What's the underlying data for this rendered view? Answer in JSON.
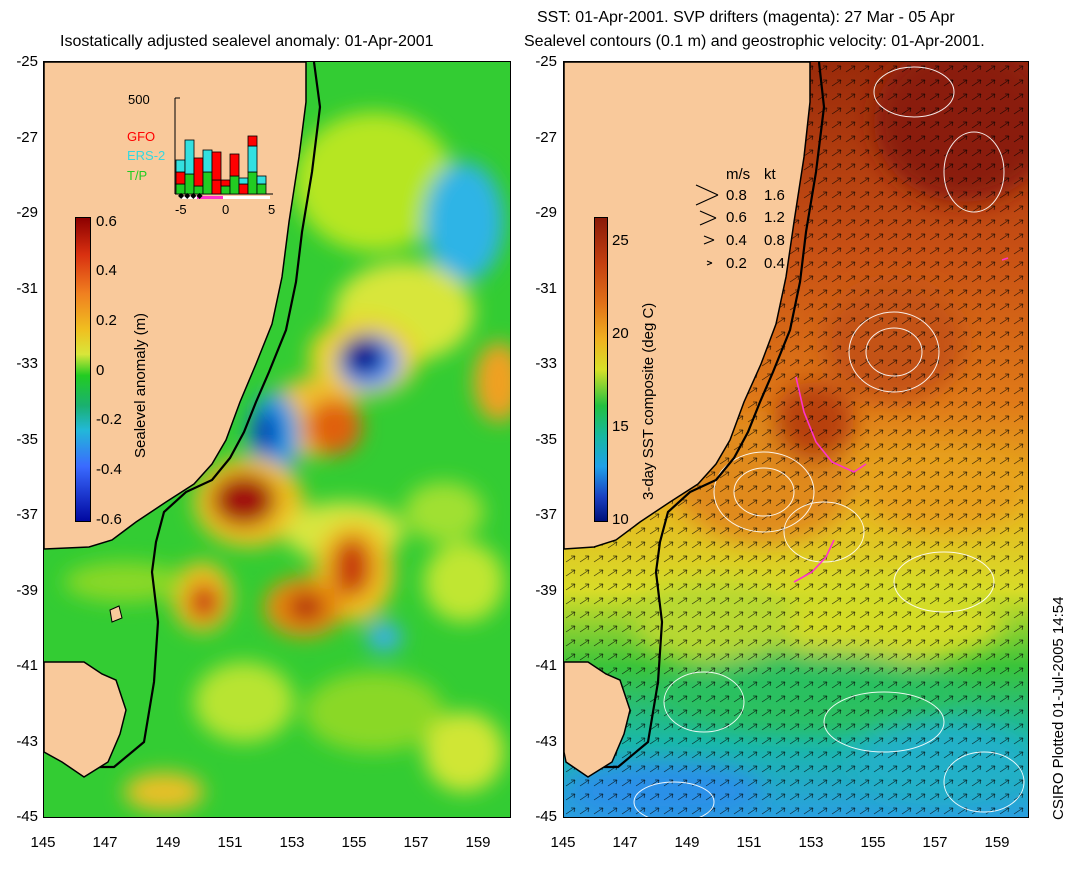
{
  "left_panel": {
    "title": "Isostatically adjusted sealevel anomaly: 01-Apr-2001",
    "colorbar": {
      "label": "Sealevel anomaly (m)",
      "ticks": [
        "0.6",
        "0.4",
        "0.2",
        "0",
        "-0.2",
        "-0.4",
        "-0.6"
      ]
    },
    "histogram": {
      "ymax_label": "500",
      "x_ticks": [
        "-5",
        "0",
        "5"
      ],
      "satellites": [
        {
          "name": "GFO",
          "color": "#ff0000"
        },
        {
          "name": "ERS-2",
          "color": "#33e0e0"
        },
        {
          "name": "T/P",
          "color": "#22cc22"
        }
      ]
    }
  },
  "right_panel": {
    "title_line1": "SST: 01-Apr-2001. SVP drifters (magenta): 27 Mar - 05 Apr",
    "title_line2": "Sealevel contours (0.1 m) and geostrophic velocity: 01-Apr-2001.",
    "colorbar": {
      "label": "3-day SST composite (deg C)",
      "ticks": [
        "25",
        "20",
        "15",
        "10"
      ]
    },
    "speed_legend": {
      "header_ms": "m/s",
      "header_kt": "kt",
      "rows": [
        {
          "ms": "0.8",
          "kt": "1.6"
        },
        {
          "ms": "0.6",
          "kt": "1.2"
        },
        {
          "ms": "0.4",
          "kt": "0.8"
        },
        {
          "ms": "0.2",
          "kt": "0.4"
        }
      ]
    }
  },
  "axes": {
    "lat_ticks": [
      "-25",
      "-27",
      "-29",
      "-31",
      "-33",
      "-35",
      "-37",
      "-39",
      "-41",
      "-43",
      "-45"
    ],
    "lon_ticks": [
      "145",
      "147",
      "149",
      "151",
      "153",
      "155",
      "157",
      "159"
    ]
  },
  "credit": "CSIRO Plotted 01-Jul-2005 14:54",
  "colors": {
    "land": "#f9c99b",
    "coast": "#000000",
    "drifter": "#ff33cc"
  }
}
